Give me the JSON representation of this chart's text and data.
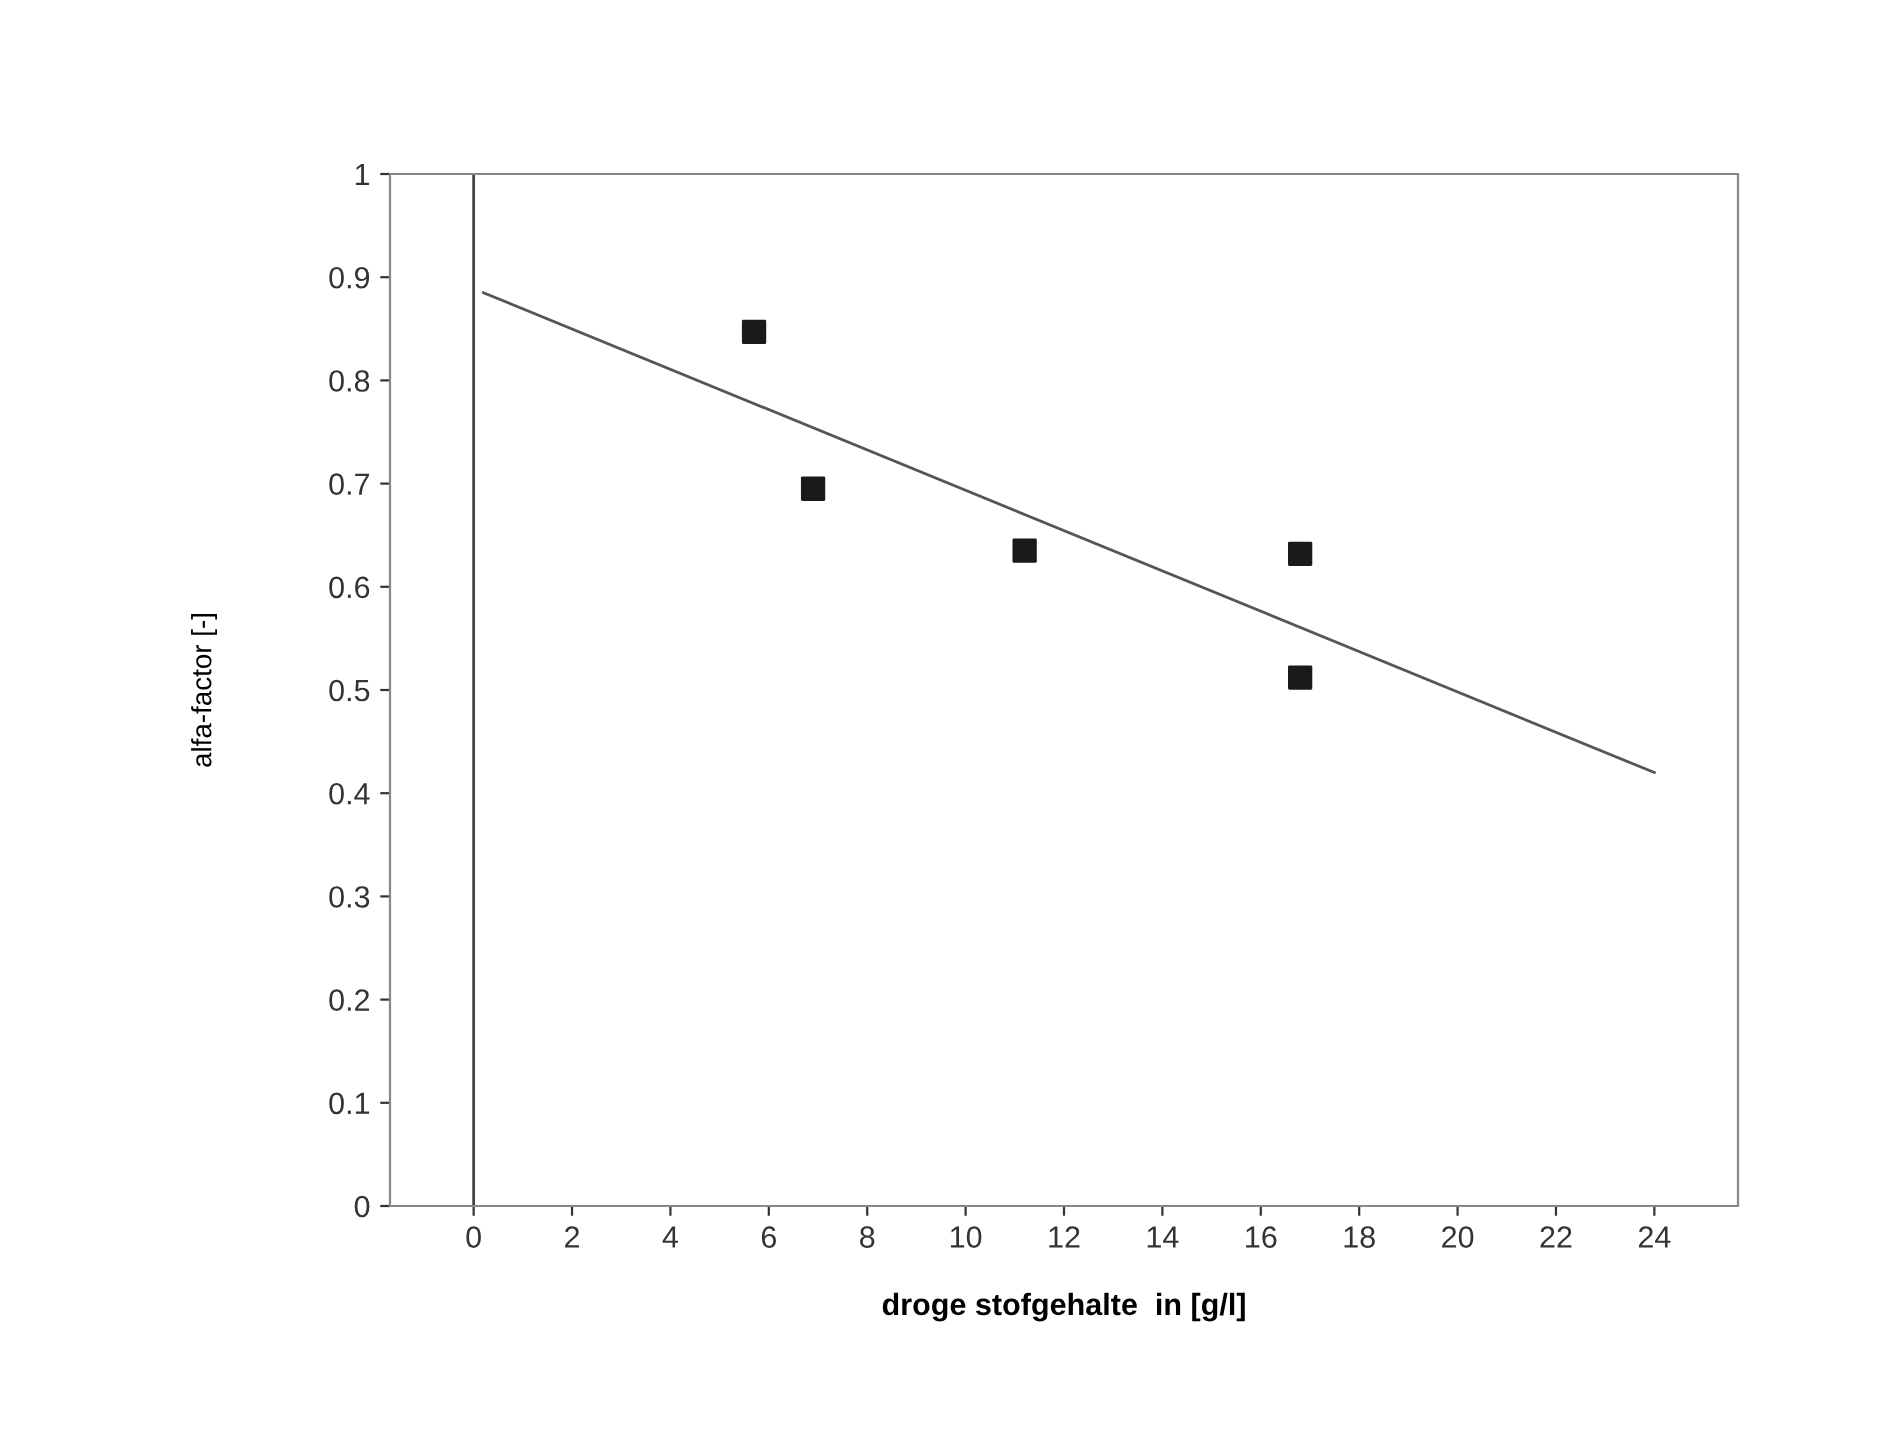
{
  "chart_data": {
    "type": "scatter",
    "xlabel": "droge stofgehalte  in [g/l]",
    "ylabel": "alfa-factor [-]",
    "xlim": [
      -1.7,
      25.7
    ],
    "ylim": [
      0,
      1
    ],
    "xticks": [
      0,
      2,
      4,
      6,
      8,
      10,
      12,
      14,
      16,
      18,
      20,
      22,
      24
    ],
    "yticks": [
      0,
      {
        "value": 0.1,
        "label": "0.1"
      },
      {
        "value": 0.2,
        "label": "0.2"
      },
      {
        "value": 0.3,
        "label": "0.3"
      },
      {
        "value": 0.4,
        "label": "0.4"
      },
      {
        "value": 0.5,
        "label": "0.5"
      },
      {
        "value": 0.6,
        "label": "0.6"
      },
      {
        "value": 0.7,
        "label": "0.7"
      },
      {
        "value": 0.8,
        "label": "0.8"
      },
      {
        "value": 0.9,
        "label": "0.9"
      },
      1
    ],
    "marker": "square",
    "grid": false,
    "legend": false,
    "ref_lines": [
      {
        "axis": "x",
        "value": 0,
        "color": "#444444"
      }
    ],
    "series": [
      {
        "color": "#1a1a1a",
        "x": [
          5.7,
          6.9,
          11.2,
          16.8,
          16.8
        ],
        "values": [
          0.847,
          0.695,
          0.635,
          0.632,
          0.512
        ]
      },
      {
        "type": "line",
        "color": "#555555",
        "marker": "none",
        "x": [
          0.2,
          24
        ],
        "values": [
          0.885,
          0.42
        ]
      }
    ]
  }
}
